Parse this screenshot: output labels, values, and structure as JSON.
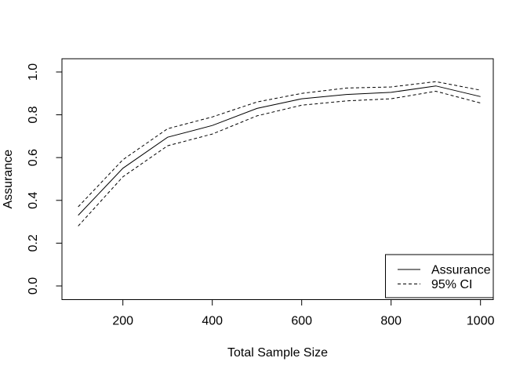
{
  "chart_data": {
    "type": "line",
    "title": "",
    "xlabel": "Total Sample Size",
    "ylabel": "Assurance",
    "x": [
      100,
      200,
      300,
      400,
      500,
      600,
      700,
      800,
      900,
      1000
    ],
    "series": [
      {
        "name": "Assurance",
        "key": "assurance",
        "style": "solid",
        "values": [
          0.33,
          0.55,
          0.695,
          0.75,
          0.83,
          0.875,
          0.895,
          0.905,
          0.935,
          0.885
        ]
      },
      {
        "name": "95% CI upper",
        "key": "ci-upper",
        "style": "dashed",
        "values": [
          0.37,
          0.59,
          0.735,
          0.79,
          0.86,
          0.9,
          0.925,
          0.93,
          0.955,
          0.915
        ]
      },
      {
        "name": "95% CI lower",
        "key": "ci-lower",
        "style": "dashed",
        "values": [
          0.28,
          0.51,
          0.655,
          0.71,
          0.795,
          0.845,
          0.865,
          0.875,
          0.91,
          0.855
        ]
      }
    ],
    "x_ticks": [
      "200",
      "400",
      "600",
      "800",
      "1000"
    ],
    "y_ticks": [
      "0.0",
      "0.2",
      "0.4",
      "0.6",
      "0.8",
      "1.0"
    ],
    "xlim": [
      63.7,
      1028.6
    ],
    "ylim": [
      -0.064,
      1.062
    ],
    "grid": "off",
    "legend": {
      "position": "bottomright",
      "entries": [
        {
          "label": "Assurance",
          "style": "solid"
        },
        {
          "label": "95% CI",
          "style": "dashed"
        }
      ]
    },
    "colors": {
      "line": "#000000",
      "text": "#000000",
      "background": "#ffffff"
    }
  }
}
